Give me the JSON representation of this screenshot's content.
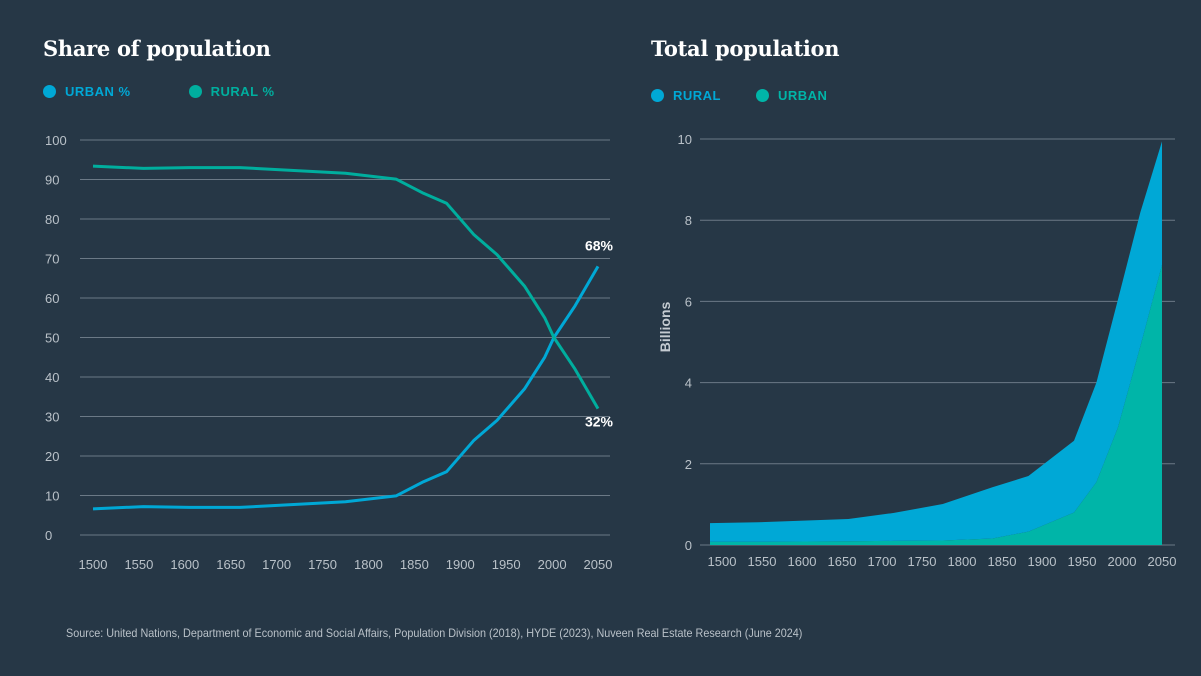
{
  "colors": {
    "background": "#263746",
    "urban_blue": "#00a8d6",
    "rural_teal": "#00ae9e",
    "area_urban": "#00b5a8",
    "grid": "#6b7986"
  },
  "source": "Source: United Nations, Department of Economic and Social Affairs, Population Division (2018), HYDE (2023), Nuveen Real Estate Research (June 2024)",
  "chart_data": [
    {
      "type": "line",
      "title": "Share of population",
      "legend": [
        "URBAN %",
        "RURAL %"
      ],
      "legend_placement": "top-left",
      "xlabel": "",
      "ylabel": "",
      "xlim": [
        1500,
        2050
      ],
      "ylim": [
        0,
        100
      ],
      "grid": true,
      "x_ticks": [
        "1500",
        "1550",
        "1600",
        "1650",
        "1700",
        "1750",
        "1800",
        "1850",
        "1900",
        "1950",
        "2000",
        "2050"
      ],
      "y_ticks": [
        "0",
        "10",
        "20",
        "30",
        "40",
        "50",
        "60",
        "70",
        "80",
        "90",
        "100"
      ],
      "x": [
        1500,
        1555,
        1605,
        1660,
        1775,
        1830,
        1860,
        1885,
        1915,
        1940,
        1970,
        1992,
        2002,
        2025,
        2050
      ],
      "series": [
        {
          "name": "URBAN %",
          "color": "#00a8d6",
          "values": [
            6.6,
            7.2,
            7.0,
            7.0,
            8.4,
            9.9,
            13.5,
            16,
            24,
            29,
            37,
            45,
            50,
            58,
            68
          ]
        },
        {
          "name": "RURAL %",
          "color": "#00ae9e",
          "values": [
            93.4,
            92.8,
            93.0,
            93.0,
            91.6,
            90.1,
            86.5,
            84,
            76,
            71,
            63,
            55,
            50,
            42,
            32
          ]
        }
      ],
      "annotations": [
        "68%",
        "32%"
      ]
    },
    {
      "type": "area",
      "stacked": true,
      "title": "Total population",
      "legend": [
        "RURAL",
        "URBAN"
      ],
      "legend_placement": "top-left",
      "xlabel": "",
      "ylabel": "Billions",
      "xlim": [
        1485,
        2052
      ],
      "ylim": [
        0,
        10
      ],
      "grid": true,
      "x_ticks": [
        "1500",
        "1550",
        "1600",
        "1650",
        "1700",
        "1750",
        "1800",
        "1850",
        "1900",
        "1950",
        "2000",
        "2050"
      ],
      "y_ticks": [
        "0",
        "2",
        "4",
        "6",
        "8",
        "10"
      ],
      "x": [
        1485,
        1545,
        1658,
        1715,
        1776,
        1838,
        1883,
        1940,
        1968,
        1995,
        2023,
        2050
      ],
      "series": [
        {
          "name": "URBAN",
          "color": "#00b5a8",
          "values": [
            0.08,
            0.08,
            0.09,
            0.1,
            0.11,
            0.16,
            0.33,
            0.8,
            1.55,
            2.9,
            4.9,
            6.9
          ]
        },
        {
          "name": "RURAL",
          "color": "#00a8d6",
          "values": [
            0.46,
            0.48,
            0.55,
            0.69,
            0.9,
            1.26,
            1.37,
            1.77,
            2.45,
            3.15,
            3.3,
            3.04
          ]
        }
      ]
    }
  ]
}
